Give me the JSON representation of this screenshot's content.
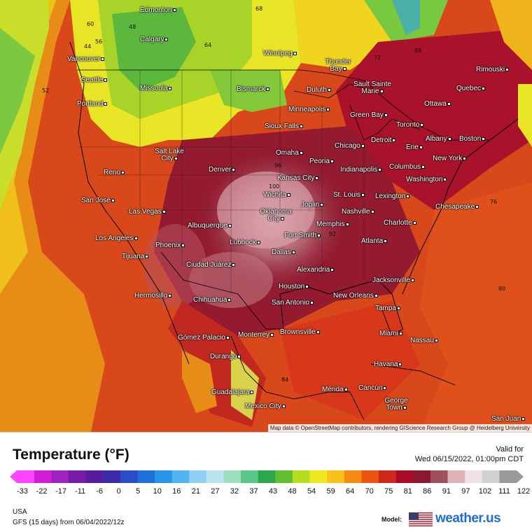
{
  "map": {
    "attribution": "Map data © OpenStreetMap contributors, rendering GIScience Research Group @ Heidelberg University",
    "cities": [
      {
        "name": "Edmonton"
      },
      {
        "name": "Calgary"
      },
      {
        "name": "Winnipeg"
      },
      {
        "name": "Vancouver"
      },
      {
        "name": "Seattle"
      },
      {
        "name": "Missoula"
      },
      {
        "name": "Thunder Bay"
      },
      {
        "name": "Sault Sainte Marie"
      },
      {
        "name": "Rimouski"
      },
      {
        "name": "Quebec"
      },
      {
        "name": "Ottawa"
      },
      {
        "name": "Bismarck"
      },
      {
        "name": "Duluth"
      },
      {
        "name": "Portland"
      },
      {
        "name": "Minneapolis"
      },
      {
        "name": "Green Bay"
      },
      {
        "name": "Toronto"
      },
      {
        "name": "Sioux Falls"
      },
      {
        "name": "Detroit"
      },
      {
        "name": "Albany"
      },
      {
        "name": "Boston"
      },
      {
        "name": "Erie"
      },
      {
        "name": "Chicago"
      },
      {
        "name": "Salt Lake City"
      },
      {
        "name": "Omaha"
      },
      {
        "name": "Reno"
      },
      {
        "name": "Denver"
      },
      {
        "name": "Peoria"
      },
      {
        "name": "Indianapolis"
      },
      {
        "name": "Columbus"
      },
      {
        "name": "New York"
      },
      {
        "name": "Washington"
      },
      {
        "name": "Kansas City"
      },
      {
        "name": "Wichita"
      },
      {
        "name": "St. Louis"
      },
      {
        "name": "Lexington"
      },
      {
        "name": "San José"
      },
      {
        "name": "Joplin"
      },
      {
        "name": "Chesapeake"
      },
      {
        "name": "Las Vegas"
      },
      {
        "name": "Oklahoma City"
      },
      {
        "name": "Nashville"
      },
      {
        "name": "Memphis"
      },
      {
        "name": "Charlotte"
      },
      {
        "name": "Albuquerque"
      },
      {
        "name": "Fort Smith"
      },
      {
        "name": "Los Angeles"
      },
      {
        "name": "Phoenix"
      },
      {
        "name": "Atlanta"
      },
      {
        "name": "Lubbock"
      },
      {
        "name": "Tijuana"
      },
      {
        "name": "Dallas"
      },
      {
        "name": "Ciudad Juárez"
      },
      {
        "name": "Alexandria"
      },
      {
        "name": "Jacksonville"
      },
      {
        "name": "Houston"
      },
      {
        "name": "New Orleans"
      },
      {
        "name": "Hermosillo"
      },
      {
        "name": "San Antonio"
      },
      {
        "name": "Chihuahua"
      },
      {
        "name": "Tampa"
      },
      {
        "name": "Brownsville"
      },
      {
        "name": "Miami"
      },
      {
        "name": "Gómez Palacio"
      },
      {
        "name": "Monterrey"
      },
      {
        "name": "Nassau"
      },
      {
        "name": "Durango"
      },
      {
        "name": "Havana"
      },
      {
        "name": "Mérida"
      },
      {
        "name": "Cancún"
      },
      {
        "name": "Guadalajara"
      },
      {
        "name": "George Town"
      },
      {
        "name": "Mexico City"
      },
      {
        "name": "San Juan"
      }
    ],
    "isotherm_labels": [
      "60",
      "56",
      "52",
      "48",
      "44",
      "64",
      "68",
      "72",
      "76",
      "80",
      "84",
      "88",
      "92",
      "96",
      "100"
    ]
  },
  "legend": {
    "title": "Temperature (°F)",
    "valid_label": "Valid for",
    "valid_time": "Wed 06/15/2022, 01:00pm CDT",
    "scale_values": [
      "-33",
      "-22",
      "-17",
      "-11",
      "-6",
      "0",
      "5",
      "10",
      "16",
      "21",
      "27",
      "32",
      "37",
      "43",
      "48",
      "54",
      "59",
      "64",
      "70",
      "75",
      "81",
      "86",
      "91",
      "97",
      "102",
      "111",
      "122"
    ],
    "colors": [
      "#ff44ff",
      "#d31dd8",
      "#a020c0",
      "#7a1aa8",
      "#5a1aa0",
      "#3b2aa8",
      "#2a4cc8",
      "#1f6fd8",
      "#2894e8",
      "#4fb4f0",
      "#8fd0f4",
      "#b8e4f0",
      "#9ce0c0",
      "#58c888",
      "#2aa84a",
      "#62c030",
      "#b8dc20",
      "#f0e81c",
      "#f8c018",
      "#f48a14",
      "#ec5410",
      "#d0261c",
      "#a80a28",
      "#8c1830",
      "#a0505c",
      "#e0b0b8",
      "#f0e0e8",
      "#d0d0d0",
      "#9a9a9a"
    ],
    "region": "USA",
    "model_run": "GFS (15 days) from  06/04/2022/12z",
    "model_label": "Model:",
    "brand": "weather.us"
  }
}
